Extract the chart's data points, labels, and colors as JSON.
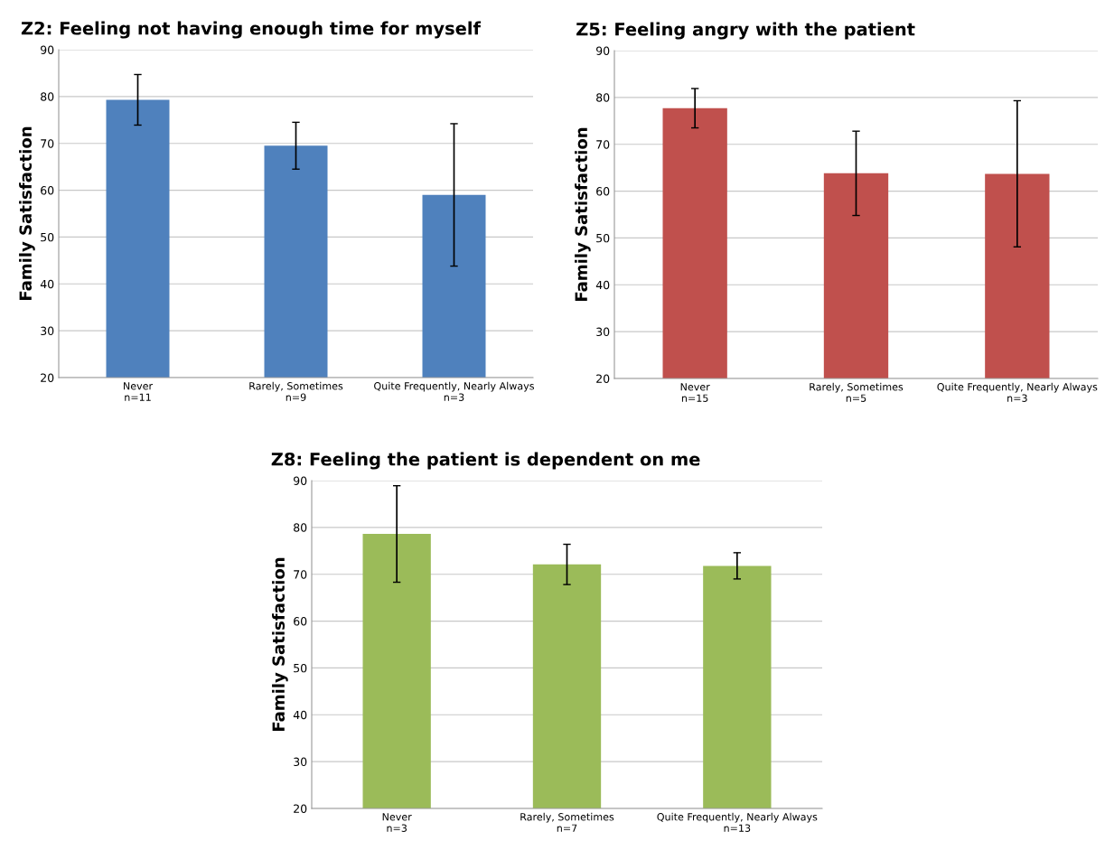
{
  "chart_data": [
    {
      "type": "bar",
      "title": "Z2: Feeling not having enough time for myself",
      "ylabel": "Family Satisfaction",
      "categories": [
        "Never\nn=11",
        "Rarely, Sometimes\nn=9",
        "Quite Frequently, Nearly Always\nn=3"
      ],
      "values": [
        79.3,
        69.5,
        59.0
      ],
      "errors": [
        5.4,
        5.0,
        15.2
      ],
      "color": "#4f81bd",
      "ylim": [
        20,
        90
      ],
      "yticks": [
        20,
        30,
        40,
        50,
        60,
        70,
        80,
        90
      ],
      "grid": "y"
    },
    {
      "type": "bar",
      "title": "Z5: Feeling angry with the patient",
      "ylabel": "Family Satisfaction",
      "categories": [
        "Never\nn=15",
        "Rarely, Sometimes\nn=5",
        "Quite Frequently, Nearly Always\nn=3"
      ],
      "values": [
        77.7,
        63.8,
        63.7
      ],
      "errors": [
        4.2,
        9.0,
        15.6
      ],
      "color": "#c0504d",
      "ylim": [
        20,
        90
      ],
      "yticks": [
        20,
        30,
        40,
        50,
        60,
        70,
        80,
        90
      ],
      "grid": "y"
    },
    {
      "type": "bar",
      "title": "Z8: Feeling the patient is dependent on me",
      "ylabel": "Family Satisfaction",
      "categories": [
        "Never\nn=3",
        "Rarely, Sometimes\nn=7",
        "Quite Frequently, Nearly Always\nn=13"
      ],
      "values": [
        78.6,
        72.1,
        71.8
      ],
      "errors": [
        10.3,
        4.3,
        2.8
      ],
      "color": "#9bbb59",
      "ylim": [
        20,
        90
      ],
      "yticks": [
        20,
        30,
        40,
        50,
        60,
        70,
        80,
        90
      ],
      "grid": "y"
    }
  ]
}
